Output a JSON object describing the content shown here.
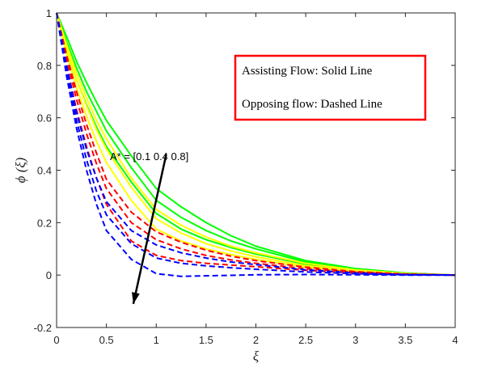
{
  "chart_data": {
    "type": "line",
    "xlabel": "ξ",
    "ylabel": "ϕ (ξ)",
    "xlim": [
      0,
      4
    ],
    "ylim": [
      -0.2,
      1
    ],
    "xticks": [
      "0",
      "0.5",
      "1",
      "1.5",
      "2",
      "2.5",
      "3",
      "3.5",
      "4"
    ],
    "yticks": [
      "-0.2",
      "0",
      "0.2",
      "0.4",
      "0.6",
      "0.8",
      "1"
    ],
    "grid": false,
    "legend": {
      "placement": "top-right",
      "entries": [
        "Assisting Flow:  Solid Line",
        "Opposing flow: Dashed Line"
      ]
    },
    "annotation": {
      "text": "A* = [0.1  0.4  0.8]",
      "arrow_from": [
        1.1,
        0.46
      ],
      "arrow_to": [
        0.77,
        -0.11
      ]
    },
    "series": [
      {
        "style": "solid",
        "color": "#00ff00",
        "x": [
          0,
          0.1,
          0.2,
          0.3,
          0.4,
          0.5,
          0.75,
          1,
          1.25,
          1.5,
          1.75,
          2,
          2.5,
          3,
          3.5,
          4
        ],
        "y": [
          1,
          0.91,
          0.815,
          0.735,
          0.66,
          0.59,
          0.455,
          0.33,
          0.26,
          0.2,
          0.15,
          0.11,
          0.055,
          0.025,
          0.008,
          0
        ]
      },
      {
        "style": "solid",
        "color": "#00ff00",
        "x": [
          0,
          0.1,
          0.2,
          0.3,
          0.4,
          0.5,
          0.75,
          1,
          1.25,
          1.5,
          1.75,
          2,
          2.5,
          3,
          3.5,
          4
        ],
        "y": [
          1,
          0.89,
          0.79,
          0.7,
          0.625,
          0.55,
          0.41,
          0.285,
          0.22,
          0.17,
          0.13,
          0.1,
          0.05,
          0.022,
          0.007,
          0
        ]
      },
      {
        "style": "solid",
        "color": "#00ff00",
        "x": [
          0,
          0.1,
          0.2,
          0.3,
          0.4,
          0.5,
          0.75,
          1,
          1.25,
          1.5,
          1.75,
          2,
          2.5,
          3,
          3.5,
          4
        ],
        "y": [
          1,
          0.86,
          0.745,
          0.65,
          0.565,
          0.49,
          0.355,
          0.235,
          0.175,
          0.135,
          0.105,
          0.08,
          0.042,
          0.018,
          0.006,
          0
        ]
      },
      {
        "style": "solid",
        "color": "#ffff00",
        "x": [
          0,
          0.1,
          0.2,
          0.3,
          0.4,
          0.5,
          0.75,
          1,
          1.25,
          1.5,
          1.75,
          2,
          2.5,
          3,
          3.5,
          4
        ],
        "y": [
          1,
          0.88,
          0.77,
          0.675,
          0.59,
          0.52,
          0.37,
          0.25,
          0.19,
          0.145,
          0.11,
          0.085,
          0.045,
          0.02,
          0.006,
          0
        ]
      },
      {
        "style": "solid",
        "color": "#ffff00",
        "x": [
          0,
          0.1,
          0.2,
          0.3,
          0.4,
          0.5,
          0.75,
          1,
          1.25,
          1.5,
          1.75,
          2,
          2.5,
          3,
          3.5,
          4
        ],
        "y": [
          1,
          0.865,
          0.745,
          0.645,
          0.555,
          0.48,
          0.335,
          0.215,
          0.16,
          0.12,
          0.092,
          0.07,
          0.036,
          0.016,
          0.005,
          0
        ]
      },
      {
        "style": "solid",
        "color": "#ffff00",
        "x": [
          0,
          0.1,
          0.2,
          0.3,
          0.4,
          0.5,
          0.75,
          1,
          1.25,
          1.5,
          1.75,
          2,
          2.5,
          3,
          3.5,
          4
        ],
        "y": [
          1,
          0.845,
          0.715,
          0.605,
          0.51,
          0.43,
          0.285,
          0.175,
          0.13,
          0.1,
          0.078,
          0.06,
          0.03,
          0.013,
          0.004,
          0
        ]
      },
      {
        "style": "dashed",
        "color": "#ff0000",
        "x": [
          0,
          0.1,
          0.2,
          0.3,
          0.4,
          0.5,
          0.75,
          1,
          1.25,
          1.5,
          1.75,
          2,
          2.5,
          3,
          3.5,
          4
        ],
        "y": [
          1,
          0.84,
          0.7,
          0.575,
          0.465,
          0.365,
          0.24,
          0.165,
          0.125,
          0.095,
          0.072,
          0.055,
          0.03,
          0.013,
          0.004,
          0
        ]
      },
      {
        "style": "dashed",
        "color": "#ff0000",
        "x": [
          0,
          0.1,
          0.2,
          0.3,
          0.4,
          0.5,
          0.75,
          1,
          1.25,
          1.5,
          1.75,
          2,
          2.5,
          3,
          3.5,
          4
        ],
        "y": [
          1,
          0.825,
          0.67,
          0.54,
          0.425,
          0.33,
          0.2,
          0.135,
          0.1,
          0.075,
          0.058,
          0.045,
          0.024,
          0.011,
          0.003,
          0
        ]
      },
      {
        "style": "dashed",
        "color": "#ff0000",
        "x": [
          0,
          0.1,
          0.2,
          0.3,
          0.4,
          0.5,
          0.75,
          1,
          1.25,
          1.5,
          1.75,
          2,
          2.5,
          3,
          3.5,
          4
        ],
        "y": [
          1,
          0.8,
          0.63,
          0.49,
          0.37,
          0.27,
          0.13,
          0.075,
          0.055,
          0.045,
          0.038,
          0.032,
          0.018,
          0.008,
          0.002,
          0
        ]
      },
      {
        "style": "dashed",
        "color": "#0000ff",
        "x": [
          0,
          0.1,
          0.2,
          0.3,
          0.4,
          0.5,
          0.75,
          1,
          1.25,
          1.5,
          1.75,
          2,
          2.5,
          3,
          3.5,
          4
        ],
        "y": [
          1,
          0.8,
          0.62,
          0.48,
          0.37,
          0.28,
          0.17,
          0.115,
          0.085,
          0.065,
          0.05,
          0.04,
          0.02,
          0.008,
          0.002,
          0
        ]
      },
      {
        "style": "dashed",
        "color": "#0000ff",
        "x": [
          0,
          0.1,
          0.2,
          0.3,
          0.4,
          0.5,
          0.75,
          1,
          1.25,
          1.5,
          1.75,
          2,
          2.5,
          3,
          3.5,
          4
        ],
        "y": [
          1,
          0.78,
          0.59,
          0.44,
          0.32,
          0.23,
          0.12,
          0.065,
          0.045,
          0.035,
          0.028,
          0.022,
          0.012,
          0.005,
          0.001,
          0
        ]
      },
      {
        "style": "dashed",
        "color": "#0000ff",
        "x": [
          0,
          0.1,
          0.2,
          0.3,
          0.4,
          0.5,
          0.75,
          1,
          1.25,
          1.5,
          1.75,
          2,
          2.5,
          3,
          3.5,
          4
        ],
        "y": [
          1,
          0.76,
          0.56,
          0.4,
          0.27,
          0.17,
          0.06,
          0.005,
          -0.005,
          -0.003,
          -0.001,
          0.001,
          0.002,
          0.001,
          0,
          0
        ]
      }
    ]
  }
}
